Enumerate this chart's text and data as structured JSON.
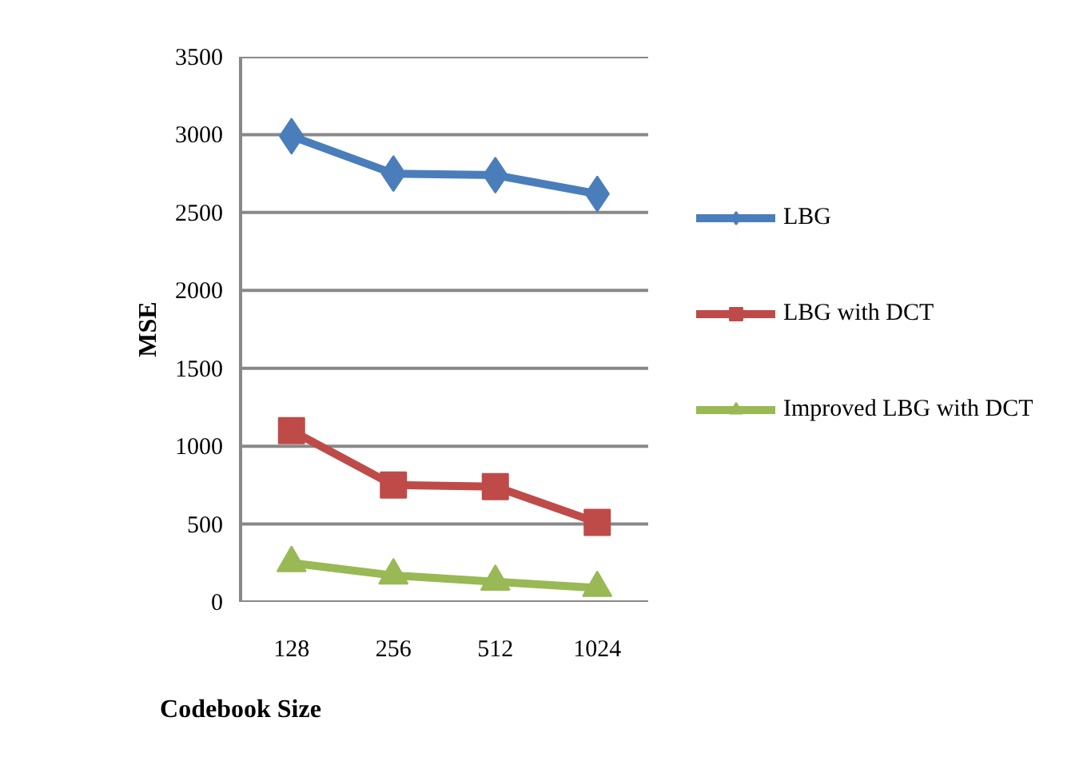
{
  "chart_data": {
    "type": "line",
    "xlabel": "Codebook Size",
    "ylabel": "MSE",
    "categories": [
      "128",
      "256",
      "512",
      "1024"
    ],
    "ylim": [
      0,
      3500
    ],
    "yticks": [
      0,
      500,
      1000,
      1500,
      2000,
      2500,
      3000,
      3500
    ],
    "grid": "y",
    "legend": "right",
    "line_style": "solid",
    "series": [
      {
        "name": "LBG",
        "color": "#4a7ebb",
        "marker": "diamond",
        "values": [
          2990,
          2750,
          2740,
          2620
        ]
      },
      {
        "name": "LBG with DCT",
        "color": "#be4b48",
        "marker": "square",
        "values": [
          1100,
          750,
          740,
          510
        ]
      },
      {
        "name": "Improved LBG with DCT",
        "color": "#98b954",
        "marker": "triangle",
        "values": [
          250,
          170,
          130,
          90
        ]
      }
    ]
  }
}
